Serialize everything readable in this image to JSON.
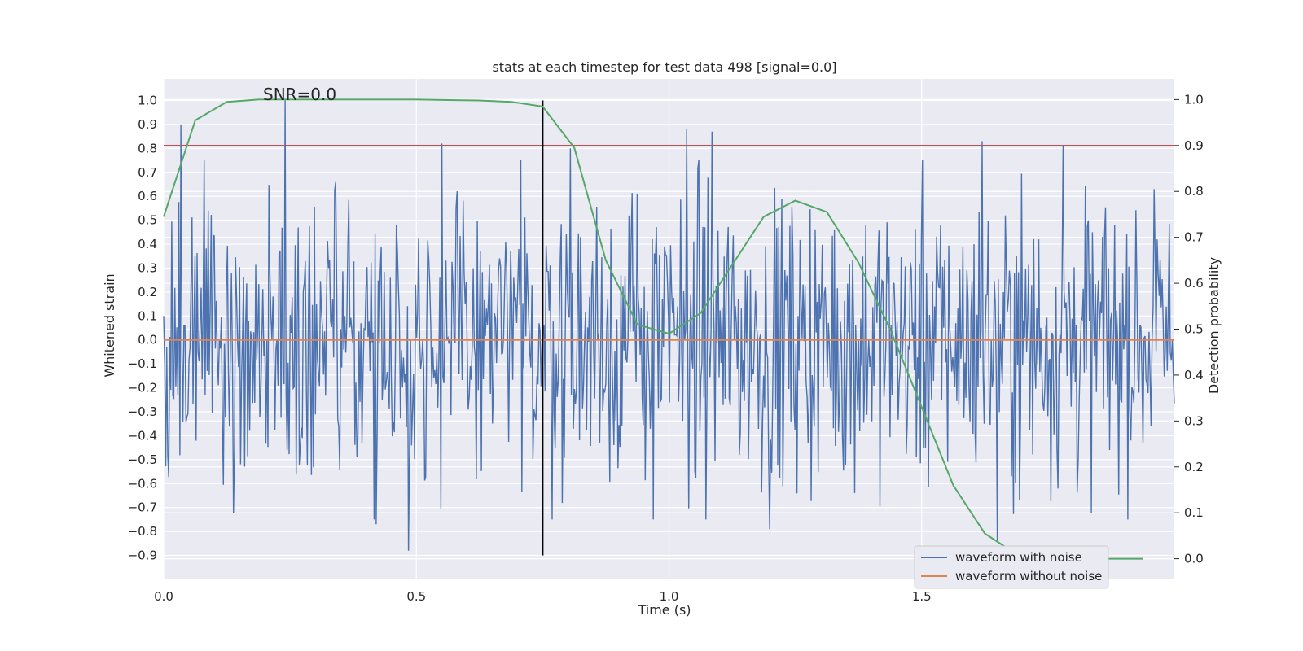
{
  "chart_data": {
    "type": "line",
    "title": "stats at each timestep for test data 498 [signal=0.0]",
    "xlabel": "Time (s)",
    "ylabel": "Whitened strain",
    "y2label": "Detection probability",
    "xlim": [
      0.0,
      2.0
    ],
    "ylim": [
      -1.0,
      1.09
    ],
    "y2lim": [
      -0.045,
      1.045
    ],
    "xticks": [
      0.0,
      0.5,
      1.0,
      1.5
    ],
    "xtick_labels": [
      "0.0",
      "0.5",
      "1.0",
      "1.5"
    ],
    "yticks": [
      1.0,
      0.9,
      0.8,
      0.7,
      0.6,
      0.5,
      0.4,
      0.3,
      0.2,
      0.1,
      0.0,
      -0.1,
      -0.2,
      -0.3,
      -0.4,
      -0.5,
      -0.6,
      -0.7,
      -0.8,
      -0.9
    ],
    "ytick_labels": [
      "1.0",
      "0.9",
      "0.8",
      "0.7",
      "0.6",
      "0.5",
      "0.4",
      "0.3",
      "0.2",
      "0.1",
      "0.0",
      "−0.1",
      "−0.2",
      "−0.3",
      "−0.4",
      "−0.5",
      "−0.6",
      "−0.7",
      "−0.8",
      "−0.9"
    ],
    "y2ticks": [
      1.0,
      0.9,
      0.8,
      0.7,
      0.6,
      0.5,
      0.4,
      0.3,
      0.2,
      0.1,
      0.0
    ],
    "y2tick_labels": [
      "1.0",
      "0.9",
      "0.8",
      "0.7",
      "0.6",
      "0.5",
      "0.4",
      "0.3",
      "0.2",
      "0.1",
      "0.0"
    ],
    "annotation": "SNR=0.0",
    "grid": true,
    "legend_position": "bottom-right",
    "series": [
      {
        "name": "waveform with noise",
        "color": "#4c72b0",
        "axis": "left",
        "note_values": "approximate noise spikes",
        "x": [
          0.0,
          0.035,
          0.24,
          0.55,
          0.805,
          1.035,
          1.085,
          1.62,
          1.78,
          1.96,
          0.485,
          0.42,
          1.65,
          1.2
        ],
        "y": [
          0.1,
          0.9,
          1.0,
          0.82,
          0.8,
          0.88,
          0.87,
          0.83,
          0.81,
          0.63,
          -0.88,
          -0.77,
          -0.84,
          -0.79
        ]
      },
      {
        "name": "waveform without noise",
        "color": "#dd8452",
        "axis": "left",
        "x": [
          0.0,
          2.0
        ],
        "y": [
          0.0,
          0.0
        ]
      },
      {
        "color": "#55a868",
        "axis": "right",
        "x": [
          0.0,
          0.0625,
          0.125,
          0.1875,
          0.25,
          0.3125,
          0.375,
          0.4375,
          0.5,
          0.5625,
          0.625,
          0.6875,
          0.75,
          0.8125,
          0.875,
          0.9375,
          1.0,
          1.0625,
          1.125,
          1.1875,
          1.25,
          1.3125,
          1.375,
          1.4375,
          1.5,
          1.5625,
          1.625,
          1.6875,
          1.75,
          1.8125,
          1.875,
          1.9375
        ],
        "y": [
          0.745,
          0.955,
          0.995,
          1.0,
          1.0,
          1.0,
          1.0,
          1.0,
          1.0,
          0.999,
          0.998,
          0.995,
          0.985,
          0.895,
          0.65,
          0.51,
          0.49,
          0.535,
          0.64,
          0.745,
          0.78,
          0.755,
          0.645,
          0.5,
          0.33,
          0.16,
          0.055,
          0.01,
          0.0,
          0.0,
          0.0,
          0.0
        ]
      }
    ],
    "threshold_line": {
      "axis": "right",
      "value": 0.9,
      "color": "#c44e52"
    },
    "vertical_line": {
      "x": 0.75,
      "y_from": -0.9,
      "y_to": 1.0,
      "color": "#000000"
    },
    "colors": {
      "plot_background": "#eaeaf2",
      "grid": "#ffffff"
    }
  }
}
